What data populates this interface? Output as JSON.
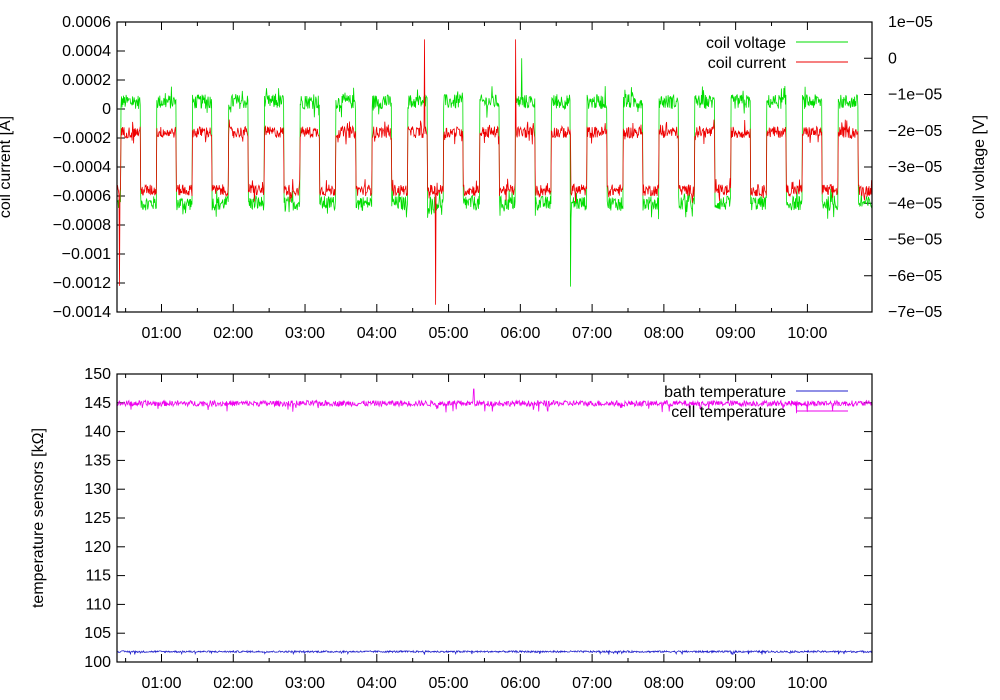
{
  "chart_data": [
    {
      "type": "line",
      "xlabel": "",
      "x_tick_labels": [
        "01:00",
        "02:00",
        "03:00",
        "04:00",
        "05:00",
        "06:00",
        "07:00",
        "08:00",
        "09:00",
        "10:00"
      ],
      "x_ticks_hours": [
        1,
        2,
        3,
        4,
        5,
        6,
        7,
        8,
        9,
        10
      ],
      "xlim_hours": [
        0.38,
        10.9
      ],
      "ylabel_left": "coil current [A]",
      "ylim_left": [
        -0.0014,
        0.0006
      ],
      "yticks_left": [
        "0.0006",
        "0.0004",
        "0.0002",
        "0",
        "−0.0002",
        "−0.0004",
        "−0.0006",
        "−0.0008",
        "−0.001",
        "−0.0012",
        "−0.0014"
      ],
      "yticks_left_values": [
        0.0006,
        0.0004,
        0.0002,
        0,
        -0.0002,
        -0.0004,
        -0.0006,
        -0.0008,
        -0.001,
        -0.0012,
        -0.0014
      ],
      "ylabel_right": "coil voltage [V]",
      "ylim_right": [
        -7e-05,
        1e-05
      ],
      "yticks_right": [
        "1e−05",
        "0",
        "−1e−05",
        "−2e−05",
        "−3e−05",
        "−4e−05",
        "−5e−05",
        "−6e−05",
        "−7e−05"
      ],
      "yticks_right_values": [
        1e-05,
        0,
        -1e-05,
        -2e-05,
        -3e-05,
        -4e-05,
        -5e-05,
        -6e-05,
        -7e-05
      ],
      "legend_position": "top-right",
      "series": [
        {
          "name": "coil voltage",
          "axis": "right",
          "color": "#00dd00",
          "high_level": -1.2e-05,
          "low_level": -4e-05,
          "noise_amplitude": 2e-06
        },
        {
          "name": "coil current",
          "axis": "left",
          "color": "#ee0000",
          "high_level": -0.00016,
          "low_level": -0.00056,
          "noise_amplitude": 4e-05
        }
      ],
      "switching_periods_hours": 0.5,
      "high_phase_fraction": 0.55,
      "spikes": [
        {
          "series": "coil current",
          "time": "04:40",
          "peak": 0.00048
        },
        {
          "series": "coil current",
          "time": "04:49",
          "peak": -0.00135
        },
        {
          "series": "coil current",
          "time": "05:56",
          "peak": 0.00048
        },
        {
          "series": "coil voltage",
          "time": "06:01",
          "peak": 0.0
        },
        {
          "series": "coil voltage",
          "time": "06:42",
          "peak": 1e-06
        },
        {
          "series": "coil voltage",
          "time": "06:42",
          "peak": -6.3e-05
        },
        {
          "series": "coil current",
          "time": "00:25",
          "peak": -0.00122
        }
      ]
    },
    {
      "type": "line",
      "xlabel": "",
      "x_tick_labels": [
        "01:00",
        "02:00",
        "03:00",
        "04:00",
        "05:00",
        "06:00",
        "07:00",
        "08:00",
        "09:00",
        "10:00"
      ],
      "x_ticks_hours": [
        1,
        2,
        3,
        4,
        5,
        6,
        7,
        8,
        9,
        10
      ],
      "xlim_hours": [
        0.38,
        10.9
      ],
      "ylabel": "temperature sensors [kΩ]",
      "ylim": [
        100,
        150
      ],
      "yticks": [
        "150",
        "145",
        "140",
        "135",
        "130",
        "125",
        "120",
        "115",
        "110",
        "105",
        "100"
      ],
      "yticks_values": [
        150,
        145,
        140,
        135,
        130,
        125,
        120,
        115,
        110,
        105,
        100
      ],
      "legend_position": "top-right",
      "series": [
        {
          "name": "bath temperature",
          "color": "#2222cc",
          "mean": 101.8,
          "noise_amplitude": 0.15
        },
        {
          "name": "cell temperature",
          "color": "#ee00ee",
          "mean": 144.9,
          "noise_amplitude": 0.5
        }
      ],
      "spikes": [
        {
          "series": "cell temperature",
          "time": "05:21",
          "peak": 147.4
        }
      ]
    }
  ]
}
